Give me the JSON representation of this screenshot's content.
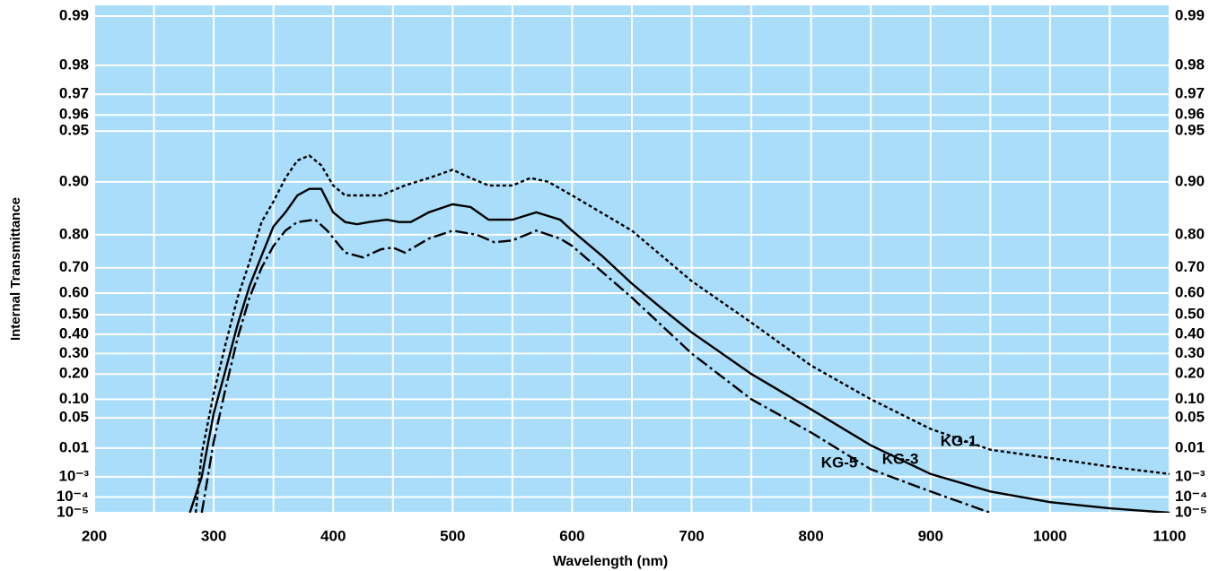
{
  "chart_data": {
    "type": "line",
    "x_label": "Wavelength (nm)",
    "y_label": "Internal Transmittance",
    "yscale": "double-log",
    "xlim": [
      200,
      1100
    ],
    "ylim": [
      1e-05,
      0.99
    ],
    "xticks": [
      200,
      300,
      400,
      500,
      600,
      700,
      800,
      900,
      1000,
      1100
    ],
    "xminorticks": [
      250,
      350,
      450,
      550,
      650,
      750,
      850,
      950,
      1050
    ],
    "yticks": [
      0.99,
      0.98,
      0.97,
      0.96,
      0.95,
      {
        "value": 0.9,
        "label": "0.90"
      },
      {
        "value": 0.8,
        "label": "0.80"
      },
      {
        "value": 0.7,
        "label": "0.70"
      },
      {
        "value": 0.6,
        "label": "0.60"
      },
      {
        "value": 0.5,
        "label": "0.50"
      },
      {
        "value": 0.4,
        "label": "0.40"
      },
      {
        "value": 0.3,
        "label": "0.30"
      },
      {
        "value": 0.2,
        "label": "0.20"
      },
      {
        "value": 0.1,
        "label": "0.10"
      },
      0.05,
      0.01,
      {
        "value": 0.001,
        "label": "10⁻³"
      },
      {
        "value": 0.0001,
        "label": "10⁻⁴"
      },
      {
        "value": 1e-05,
        "label": "10⁻⁵"
      }
    ],
    "grid": true,
    "background": "#a9ddf9",
    "series": [
      {
        "name": "KG-1",
        "color": "#000000",
        "dash": "4,3",
        "x": [
          285,
          290,
          300,
          310,
          320,
          330,
          340,
          350,
          360,
          370,
          380,
          390,
          400,
          410,
          420,
          440,
          460,
          480,
          500,
          515,
          530,
          550,
          565,
          580,
          600,
          650,
          700,
          750,
          800,
          850,
          900,
          950,
          1000,
          1050,
          1100
        ],
        "values": [
          1e-05,
          0.007,
          0.12,
          0.35,
          0.58,
          0.72,
          0.83,
          0.87,
          0.905,
          0.925,
          0.93,
          0.92,
          0.895,
          0.88,
          0.88,
          0.88,
          0.895,
          0.905,
          0.915,
          0.905,
          0.895,
          0.895,
          0.905,
          0.9,
          0.88,
          0.81,
          0.65,
          0.46,
          0.24,
          0.1,
          0.03,
          0.009,
          0.005,
          0.0025,
          0.0013
        ]
      },
      {
        "name": "KG-3",
        "color": "#000000",
        "dash": "none",
        "x": [
          280,
          290,
          300,
          310,
          320,
          330,
          340,
          350,
          360,
          370,
          380,
          390,
          400,
          410,
          420,
          430,
          445,
          455,
          465,
          480,
          500,
          515,
          530,
          550,
          570,
          590,
          600,
          625,
          650,
          675,
          700,
          750,
          800,
          850,
          900,
          950,
          1000,
          1050,
          1100
        ],
        "values": [
          1e-05,
          0.001,
          0.06,
          0.22,
          0.45,
          0.63,
          0.74,
          0.82,
          0.85,
          0.88,
          0.89,
          0.89,
          0.85,
          0.83,
          0.825,
          0.83,
          0.835,
          0.83,
          0.83,
          0.85,
          0.865,
          0.86,
          0.835,
          0.835,
          0.85,
          0.835,
          0.81,
          0.74,
          0.64,
          0.53,
          0.41,
          0.2,
          0.07,
          0.012,
          0.0013,
          0.0002,
          5e-05,
          2e-05,
          1e-05
        ]
      },
      {
        "name": "KG-5",
        "color": "#000000",
        "dash": "14,4,3,4",
        "x": [
          290,
          300,
          310,
          320,
          330,
          340,
          350,
          360,
          370,
          385,
          395,
          410,
          425,
          440,
          450,
          460,
          480,
          500,
          520,
          535,
          550,
          570,
          590,
          600,
          650,
          700,
          750,
          800,
          850,
          900,
          950
        ],
        "values": [
          1e-05,
          0.015,
          0.14,
          0.38,
          0.58,
          0.7,
          0.77,
          0.81,
          0.83,
          0.835,
          0.81,
          0.75,
          0.735,
          0.76,
          0.765,
          0.75,
          0.79,
          0.81,
          0.8,
          0.78,
          0.785,
          0.81,
          0.79,
          0.77,
          0.58,
          0.3,
          0.1,
          0.025,
          0.002,
          0.0002,
          1e-05
        ]
      }
    ]
  }
}
